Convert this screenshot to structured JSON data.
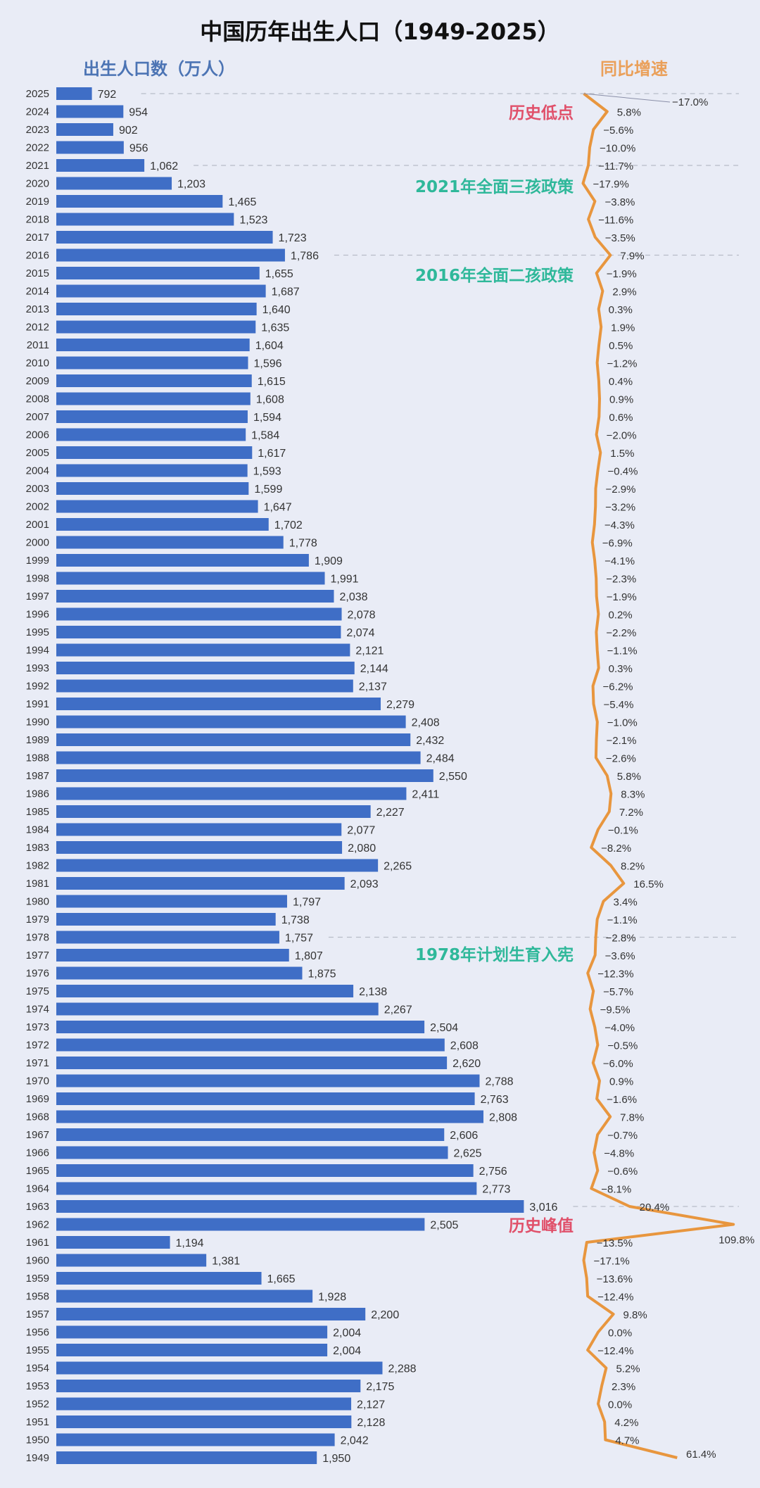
{
  "title": "中国历年出生人口（1949-2025）",
  "left_header": "出生人口数（万人）",
  "right_header": "同比增速",
  "annotations": {
    "low": "历史低点",
    "three_child": "2021年全面三孩政策",
    "two_child": "2016年全面二孩政策",
    "family_planning": "1978年计划生育入宪",
    "peak": "历史峰值"
  },
  "colors": {
    "bar": "#3f6ec6",
    "line": "#e8963e",
    "highlight_red": "#e0506a",
    "policy_teal": "#2fb89a",
    "left_header": "#4c74b4",
    "right_header": "#eaa05a"
  },
  "chart_data": {
    "type": "bar+line",
    "orientation": "horizontal",
    "title": "中国历年出生人口（1949-2025）",
    "series": [
      {
        "name": "出生人口数（万人）",
        "type": "bar"
      },
      {
        "name": "同比增速",
        "type": "line",
        "unit": "%"
      }
    ],
    "years": [
      2025,
      2024,
      2023,
      2022,
      2021,
      2020,
      2019,
      2018,
      2017,
      2016,
      2015,
      2014,
      2013,
      2012,
      2011,
      2010,
      2009,
      2008,
      2007,
      2006,
      2005,
      2004,
      2003,
      2002,
      2001,
      2000,
      1999,
      1998,
      1997,
      1996,
      1995,
      1994,
      1993,
      1992,
      1991,
      1990,
      1989,
      1988,
      1987,
      1986,
      1985,
      1984,
      1983,
      1982,
      1981,
      1980,
      1979,
      1978,
      1977,
      1976,
      1975,
      1974,
      1973,
      1972,
      1971,
      1970,
      1969,
      1968,
      1967,
      1966,
      1965,
      1964,
      1963,
      1962,
      1961,
      1960,
      1959,
      1958,
      1957,
      1956,
      1955,
      1954,
      1953,
      1952,
      1951,
      1950,
      1949
    ],
    "births": [
      792,
      954,
      902,
      956,
      1062,
      1203,
      1465,
      1523,
      1723,
      1786,
      1655,
      1687,
      1640,
      1635,
      1604,
      1596,
      1615,
      1608,
      1594,
      1584,
      1617,
      1593,
      1599,
      1647,
      1702,
      1778,
      1909,
      1991,
      2038,
      2078,
      2074,
      2121,
      2144,
      2137,
      2279,
      2408,
      2432,
      2484,
      2550,
      2411,
      2227,
      2077,
      2080,
      2265,
      2093,
      1797,
      1738,
      1757,
      1807,
      1875,
      2138,
      2267,
      2504,
      2608,
      2620,
      2788,
      2763,
      2808,
      2606,
      2625,
      2756,
      2773,
      3016,
      2505,
      1194,
      1381,
      1665,
      1928,
      2200,
      2004,
      2004,
      2288,
      2175,
      2127,
      2128,
      2042,
      1950
    ],
    "growth": [
      -17.0,
      5.8,
      -5.6,
      -10.0,
      -11.7,
      -17.9,
      -3.8,
      -11.6,
      -3.5,
      7.9,
      -1.9,
      2.9,
      0.3,
      1.9,
      0.5,
      -1.2,
      0.4,
      0.9,
      0.6,
      -2.0,
      1.5,
      -0.4,
      -2.9,
      -3.2,
      -4.3,
      -6.9,
      -4.1,
      -2.3,
      -1.9,
      0.2,
      -2.2,
      -1.1,
      0.3,
      -6.2,
      -5.4,
      -1.0,
      -2.1,
      -2.6,
      5.8,
      8.3,
      7.2,
      -0.1,
      -8.2,
      8.2,
      16.5,
      3.4,
      -1.1,
      -2.8,
      -3.6,
      -12.3,
      -5.7,
      -9.5,
      -4.0,
      -0.5,
      -6.0,
      0.9,
      -1.6,
      7.8,
      -0.7,
      -4.8,
      -0.6,
      -8.1,
      20.4,
      109.8,
      -13.5,
      -17.1,
      -13.6,
      -12.4,
      9.8,
      0.0,
      -12.4,
      5.2,
      2.3,
      0.0,
      4.2,
      4.7,
      61.4
    ],
    "reference_lines_years": [
      2025,
      2021,
      2016,
      1978,
      1963
    ],
    "grid": false,
    "legend": "none"
  }
}
